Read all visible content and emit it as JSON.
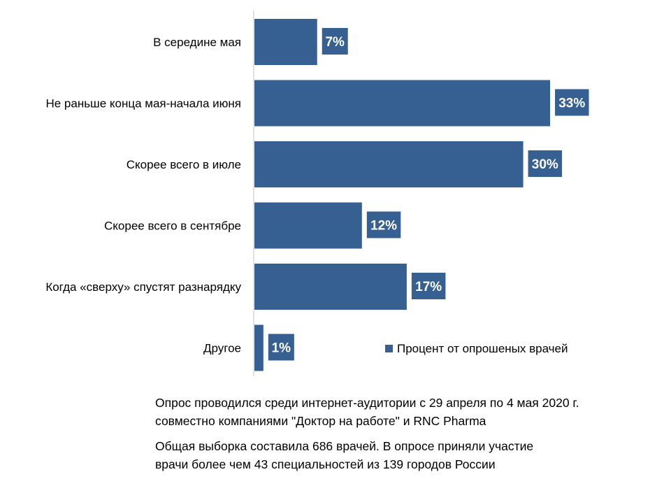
{
  "chart_data": {
    "type": "bar",
    "orientation": "horizontal",
    "categories": [
      "В середине мая",
      "Не раньше конца мая-начала июня",
      "Скорее всего в июле",
      "Скорее всего в сентябре",
      "Когда «сверху» спустят разнарядку",
      "Другое"
    ],
    "series": [
      {
        "name": "Процент от опрошеных врачей",
        "values": [
          7,
          33,
          30,
          12,
          17,
          1
        ],
        "data_labels": [
          "7%",
          "33%",
          "30%",
          "12%",
          "17%",
          "1%"
        ],
        "color": "#376092"
      }
    ],
    "xlim": [
      0,
      33
    ],
    "grid": false,
    "legend_position": "bottom-right"
  },
  "notes": [
    "Опрос проводился среди интернет-аудитории с 29 апреля по 4 мая 2020 г.\nсовместно компаниями \"Доктор на работе\" и RNC Pharma",
    "Общая выборка составила 686 врачей. В опросе приняли участие\nврачи более чем 43 специальностей из 139 городов России"
  ]
}
